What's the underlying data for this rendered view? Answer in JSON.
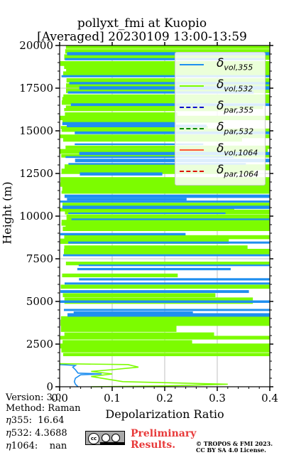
{
  "chart_data": {
    "type": "line",
    "title": "pollyxt_fmi at Kuopio",
    "subtitle": "[Averaged] 20230109 13:00-13:59",
    "xlabel": "Depolarization Ratio",
    "ylabel": "Height (m)",
    "xlim": [
      0.0,
      0.4
    ],
    "ylim": [
      0,
      20000
    ],
    "xticks": [
      "0.0",
      "0.1",
      "0.2",
      "0.3",
      "0.4"
    ],
    "yticks": [
      "0",
      "2500",
      "5000",
      "7500",
      "10000",
      "12500",
      "15000",
      "17500",
      "20000"
    ],
    "grid": true,
    "legend_position": "top-right",
    "series": [
      {
        "symbol": "δ",
        "sub": "vol,355",
        "color": "#1f8ff0",
        "style": "solid",
        "points": [
          [
            0.035,
            0
          ],
          [
            0.03,
            150
          ],
          [
            0.028,
            300
          ],
          [
            0.03,
            500
          ],
          [
            0.04,
            700
          ],
          [
            0.08,
            750
          ],
          [
            0.035,
            800
          ],
          [
            0.03,
            1000
          ],
          [
            0.025,
            1150
          ],
          [
            0.03,
            1250
          ],
          [
            0.0,
            1300
          ]
        ]
      },
      {
        "symbol": "δ",
        "sub": "vol,532",
        "color": "#7cfc00",
        "style": "solid",
        "points": [
          [
            0.06,
            0
          ],
          [
            0.2,
            50
          ],
          [
            0.32,
            150
          ],
          [
            0.12,
            300
          ],
          [
            0.09,
            450
          ],
          [
            0.06,
            600
          ],
          [
            0.1,
            750
          ],
          [
            0.06,
            900
          ],
          [
            0.1,
            1000
          ],
          [
            0.15,
            1150
          ],
          [
            0.13,
            1300
          ],
          [
            0.0,
            1350
          ]
        ]
      },
      {
        "symbol": "δ",
        "sub": "par,355",
        "color": "#0000cc",
        "style": "dashed",
        "points": []
      },
      {
        "symbol": "δ",
        "sub": "par,532",
        "color": "#008800",
        "style": "dashed",
        "points": []
      },
      {
        "symbol": "δ",
        "sub": "vol,1064",
        "color": "#ff5533",
        "style": "solid",
        "points": []
      },
      {
        "symbol": "δ",
        "sub": "par,1064",
        "color": "#dd1100",
        "style": "dashed",
        "points": []
      }
    ],
    "noise_bands": {
      "note": "",
      "blue_heights": [
        4250,
        4350,
        4500,
        5000,
        5600,
        6050,
        6300,
        6900,
        7100,
        7700,
        8450,
        8950,
        9800,
        10150,
        10550,
        10850,
        11000,
        11200,
        12500,
        13050,
        13300,
        13450,
        13700,
        14200,
        14900,
        15300,
        15450,
        16550,
        17250,
        17550,
        17800,
        18200,
        19200,
        19550
      ],
      "green_heights": [
        1900,
        2200,
        2450,
        2650,
        2900,
        3100,
        3500,
        3850,
        4050,
        5150,
        5400,
        5900,
        6550,
        7250,
        8000,
        8200,
        8600,
        8800,
        9300,
        9450,
        9550,
        9700,
        10000,
        10300,
        10400,
        10700,
        11400,
        11650,
        11900,
        12050,
        12200,
        12700,
        12950,
        13550,
        13850,
        14050,
        14550,
        14700,
        15050,
        15200,
        15650,
        15800,
        16000,
        16250,
        16400,
        16700,
        16900,
        17050,
        17400,
        17700,
        18000,
        18400,
        18600,
        18800,
        19000,
        19400,
        19700,
        19900
      ]
    }
  },
  "meta": {
    "version": "Version: 3.0",
    "method": "Method: Raman",
    "eta355_label": "355:",
    "eta355_value": "16.64",
    "eta532_label": "532:",
    "eta532_value": "4.3688",
    "eta1064_label": "1064:",
    "eta1064_value": "nan",
    "eta_symbol": "η",
    "preliminary": "Preliminary",
    "results": "Results.",
    "license1": "© TROPOS & FMI 2023.",
    "license2": "CC BY SA 4.0 License.",
    "cc_logo_text": "cc"
  }
}
